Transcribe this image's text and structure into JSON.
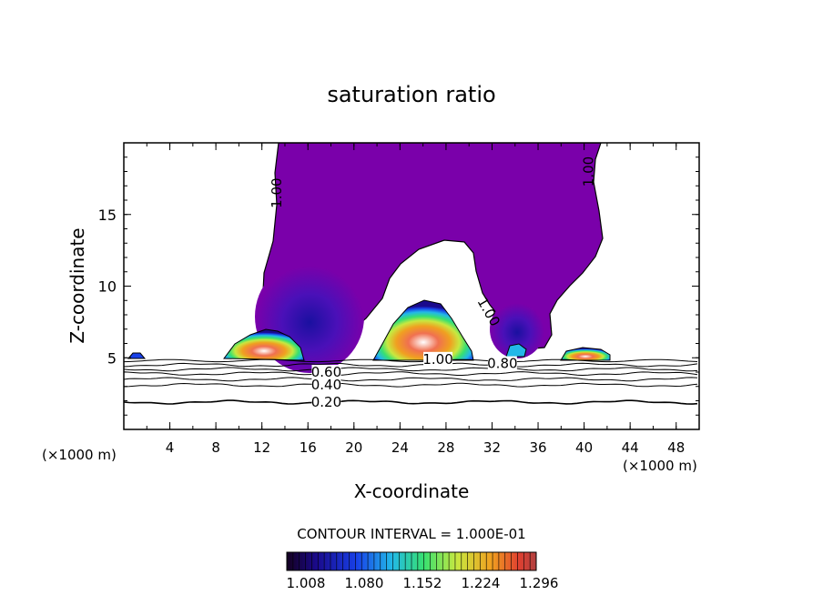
{
  "chart_data": {
    "type": "contour",
    "title": "saturation ratio",
    "xlabel": "X-coordinate",
    "ylabel": "Z-coordinate",
    "x_unit_left": "(×1000 m)",
    "x_unit_right": "(×1000 m)",
    "xlim": [
      0,
      50
    ],
    "ylim": [
      0,
      20
    ],
    "x_ticks": [
      4,
      8,
      12,
      16,
      20,
      24,
      28,
      32,
      36,
      40,
      44,
      48
    ],
    "y_ticks": [
      5,
      10,
      15
    ],
    "contour_interval_text": "CONTOUR INTERVAL = 1.000E-01",
    "contour_labels": [
      {
        "text": "1.00",
        "x": 13.3,
        "z": 16.5,
        "rotate": -90
      },
      {
        "text": "1.00",
        "x": 40.4,
        "z": 18.0,
        "rotate": -90
      },
      {
        "text": "1.00",
        "x": 31.7,
        "z": 8.2,
        "rotate": 60
      },
      {
        "text": "1.00",
        "x": 27.3,
        "z": 4.9,
        "rotate": 0
      },
      {
        "text": "0.80",
        "x": 32.9,
        "z": 4.6,
        "rotate": 0
      },
      {
        "text": "0.60",
        "x": 17.6,
        "z": 4.0,
        "rotate": 0
      },
      {
        "text": "0.40",
        "x": 17.6,
        "z": 3.1,
        "rotate": 0
      },
      {
        "text": "0.20",
        "x": 17.6,
        "z": 1.9,
        "rotate": 0
      }
    ],
    "background_contours_z": [
      1.9,
      3.1,
      3.5,
      3.9,
      4.2,
      4.5
    ],
    "colorbar": {
      "labels": [
        "1.008",
        "1.080",
        "1.152",
        "1.224",
        "1.296"
      ],
      "colors": [
        "#140020",
        "#1a0a8c",
        "#1840e8",
        "#22b8e8",
        "#38e070",
        "#c8e840",
        "#f0a020",
        "#e04030",
        "#b04040"
      ]
    },
    "fill_color_main": "#7a00aa"
  }
}
